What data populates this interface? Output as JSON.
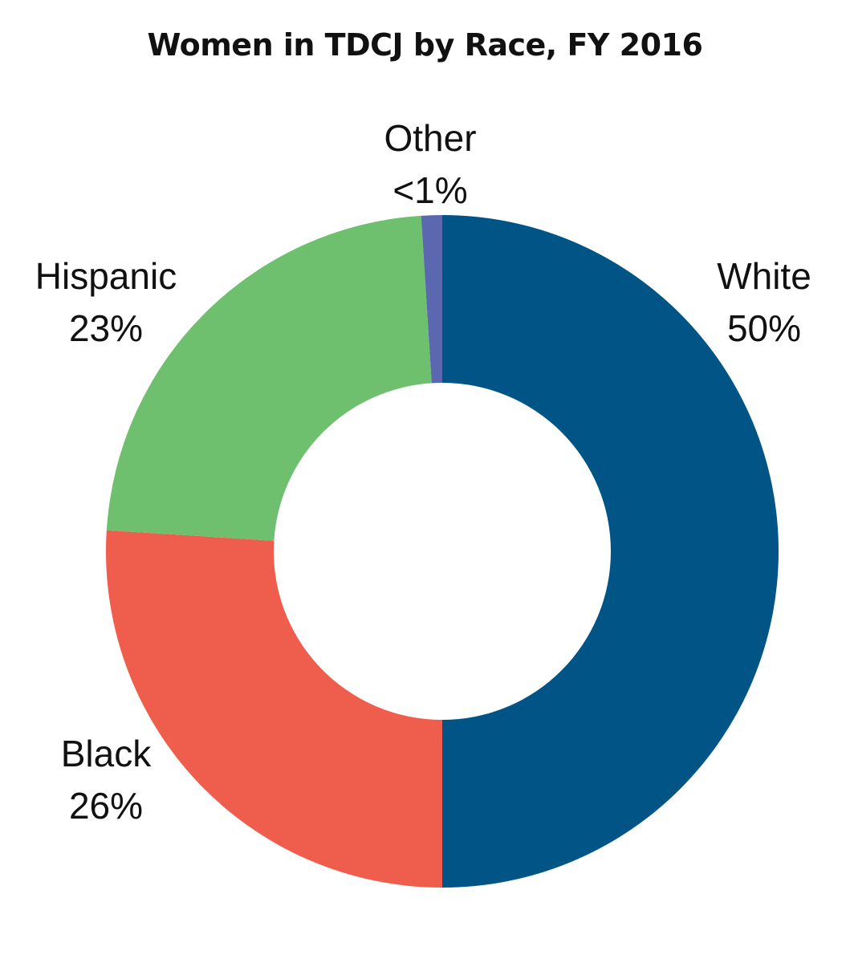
{
  "chart_data": {
    "type": "pie",
    "title": "Women in TDCJ by Race, FY 2016",
    "slices": [
      {
        "name": "White",
        "value": 50,
        "label": "50%",
        "color": "#005486"
      },
      {
        "name": "Black",
        "value": 26,
        "label": "26%",
        "color": "#EF5D4D"
      },
      {
        "name": "Hispanic",
        "value": 23,
        "label": "23%",
        "color": "#6EC06E"
      },
      {
        "name": "Other",
        "value": 1,
        "label": "<1%",
        "color": "#5B67AE"
      }
    ],
    "legend": "none"
  }
}
